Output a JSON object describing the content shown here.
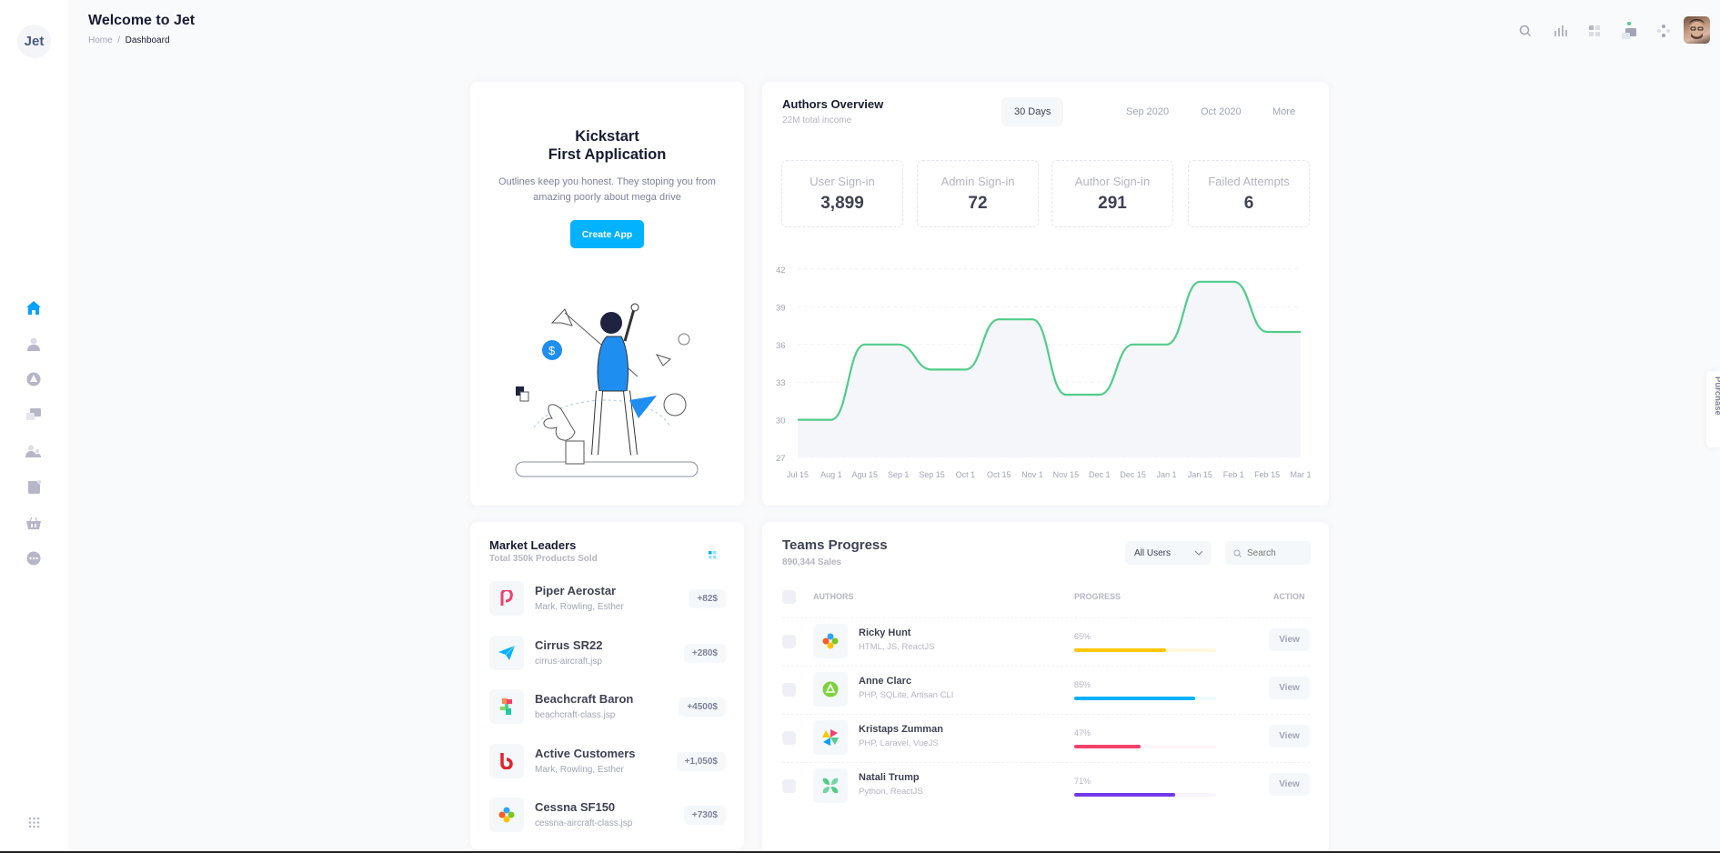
{
  "app": {
    "logo": "Jet",
    "title": "Welcome to Jet",
    "breadcrumb": [
      "Home",
      "Dashboard"
    ]
  },
  "sidebar": {
    "items": [
      {
        "icon": "home-icon",
        "active": true
      },
      {
        "icon": "user-icon"
      },
      {
        "icon": "chart-pie-icon"
      },
      {
        "icon": "chat-icon"
      },
      {
        "icon": "users-icon"
      },
      {
        "icon": "document-icon"
      },
      {
        "icon": "basket-icon"
      },
      {
        "icon": "more-icon"
      }
    ],
    "bottom_icon": "apps-grid-icon"
  },
  "topbar": {
    "icons": [
      "search-icon",
      "stats-icon",
      "grid-icon",
      "chat-icon",
      "layers-icon"
    ],
    "notification_color": "#50cd89"
  },
  "purchase_tab": "Purchase",
  "kickstart": {
    "title1": "Kickstart",
    "title2": "First Application",
    "text1": "Outlines keep you honest. They stoping you from",
    "text2": "amazing poorly about mega drive",
    "button": "Create App"
  },
  "authors": {
    "title": "Authors Overview",
    "subtitle": "22M total income",
    "tabs": [
      "30 Days",
      "Sep 2020",
      "Oct 2020",
      "More"
    ],
    "stats": [
      {
        "label": "User Sign-in",
        "value": "3,899"
      },
      {
        "label": "Admin Sign-in",
        "value": "72"
      },
      {
        "label": "Author Sign-in",
        "value": "291"
      },
      {
        "label": "Failed Attempts",
        "value": "6"
      }
    ]
  },
  "chart_data": {
    "type": "area",
    "x": [
      "Jul 15",
      "Aug 1",
      "Agu 15",
      "Sep 1",
      "Sep 15",
      "Oct 1",
      "Oct 15",
      "Nov 1",
      "Nov 15",
      "Dec 1",
      "Dec 15",
      "Jan 1",
      "Jan 15",
      "Feb 1",
      "Feb 15",
      "Mar 1"
    ],
    "values": [
      30,
      30,
      36,
      36,
      34,
      34,
      38,
      38,
      32,
      32,
      36,
      36,
      41,
      41,
      37,
      37
    ],
    "yticks": [
      42,
      39,
      36,
      33,
      30,
      27
    ],
    "ylim": [
      27,
      42
    ],
    "grid": true,
    "color": "#50cd89"
  },
  "market": {
    "title": "Market Leaders",
    "subtitle": "Total 350k Products Sold",
    "items": [
      {
        "name": "Piper Aerostar",
        "sub": "Mark, Rowling, Esther",
        "badge": "+82$"
      },
      {
        "name": "Cirrus SR22",
        "sub": "cirrus-aircraft.jsp",
        "badge": "+280$"
      },
      {
        "name": "Beachcraft Baron",
        "sub": "beachcraft-class.jsp",
        "badge": "+4500$"
      },
      {
        "name": "Active Customers",
        "sub": "Mark, Rowling, Esther",
        "badge": "+1,050$"
      },
      {
        "name": "Cessna SF150",
        "sub": "cessna-aircraft-class.jsp",
        "badge": "+730$"
      }
    ]
  },
  "teams": {
    "title": "Teams Progress",
    "subtitle": "890,344 Sales",
    "filter": "All Users",
    "search_placeholder": "Search",
    "headers": [
      "AUTHORS",
      "PROGRESS",
      "ACTION"
    ],
    "rows": [
      {
        "name": "Ricky Hunt",
        "sub": "HTML, JS, ReactJS",
        "pct": "65%",
        "value": 65,
        "color": "#ffc700",
        "track": "#fff8dd",
        "action": "View"
      },
      {
        "name": "Anne Clarc",
        "sub": "PHP, SQLite, Artisan CLI",
        "pct": "85%",
        "value": 85,
        "color": "#00b2ff",
        "track": "#f1faff",
        "action": "View"
      },
      {
        "name": "Kristaps Zumman",
        "sub": "PHP, Laravel, VueJS",
        "pct": "47%",
        "value": 47,
        "color": "#f1416c",
        "track": "#fff5f8",
        "action": "View"
      },
      {
        "name": "Natali Trump",
        "sub": "Python, ReactJS",
        "pct": "71%",
        "value": 71,
        "color": "#7239ea",
        "track": "#f8f5ff",
        "action": "View"
      }
    ]
  }
}
